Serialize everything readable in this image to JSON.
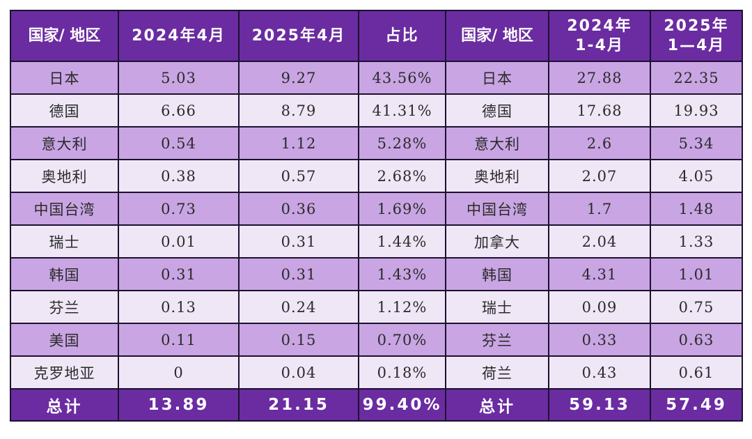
{
  "colors": {
    "header_bg": "#6a2ca0",
    "header_text": "#ffffff",
    "row_odd_bg": "#c9a5e3",
    "row_even_bg": "#efe7f6",
    "border": "#1c1030",
    "cell_text": "#2a2a2a"
  },
  "table": {
    "headers": {
      "left_region": "国家/ 地区",
      "apr_2024": "2024年4月",
      "apr_2025": "2025年4月",
      "share": "占比",
      "right_region": "国家/ 地区",
      "ytd_2024_line1": "2024年",
      "ytd_2024_line2": "1-4月",
      "ytd_2025_line1": "2025年",
      "ytd_2025_line2": "1—4月"
    },
    "rows": [
      {
        "left_region": "日本",
        "apr_2024": "5.03",
        "apr_2025": "9.27",
        "share": "43.56%",
        "right_region": "日本",
        "ytd_2024": "27.88",
        "ytd_2025": "22.35"
      },
      {
        "left_region": "德国",
        "apr_2024": "6.66",
        "apr_2025": "8.79",
        "share": "41.31%",
        "right_region": "德国",
        "ytd_2024": "17.68",
        "ytd_2025": "19.93"
      },
      {
        "left_region": "意大利",
        "apr_2024": "0.54",
        "apr_2025": "1.12",
        "share": "5.28%",
        "right_region": "意大利",
        "ytd_2024": "2.6",
        "ytd_2025": "5.34"
      },
      {
        "left_region": "奥地利",
        "apr_2024": "0.38",
        "apr_2025": "0.57",
        "share": "2.68%",
        "right_region": "奥地利",
        "ytd_2024": "2.07",
        "ytd_2025": "4.05"
      },
      {
        "left_region": "中国台湾",
        "apr_2024": "0.73",
        "apr_2025": "0.36",
        "share": "1.69%",
        "right_region": "中国台湾",
        "ytd_2024": "1.7",
        "ytd_2025": "1.48"
      },
      {
        "left_region": "瑞士",
        "apr_2024": "0.01",
        "apr_2025": "0.31",
        "share": "1.44%",
        "right_region": "加拿大",
        "ytd_2024": "2.04",
        "ytd_2025": "1.33"
      },
      {
        "left_region": "韩国",
        "apr_2024": "0.31",
        "apr_2025": "0.31",
        "share": "1.43%",
        "right_region": "韩国",
        "ytd_2024": "4.31",
        "ytd_2025": "1.01"
      },
      {
        "left_region": "芬兰",
        "apr_2024": "0.13",
        "apr_2025": "0.24",
        "share": "1.12%",
        "right_region": "瑞士",
        "ytd_2024": "0.09",
        "ytd_2025": "0.75"
      },
      {
        "left_region": "美国",
        "apr_2024": "0.11",
        "apr_2025": "0.15",
        "share": "0.70%",
        "right_region": "芬兰",
        "ytd_2024": "0.33",
        "ytd_2025": "0.63"
      },
      {
        "left_region": "克罗地亚",
        "apr_2024": "0",
        "apr_2025": "0.04",
        "share": "0.18%",
        "right_region": "荷兰",
        "ytd_2024": "0.43",
        "ytd_2025": "0.61"
      }
    ],
    "total": {
      "left_label": "总计",
      "apr_2024": "13.89",
      "apr_2025": "21.15",
      "share": "99.40%",
      "right_label": "总计",
      "ytd_2024": "59.13",
      "ytd_2025": "57.49"
    }
  }
}
